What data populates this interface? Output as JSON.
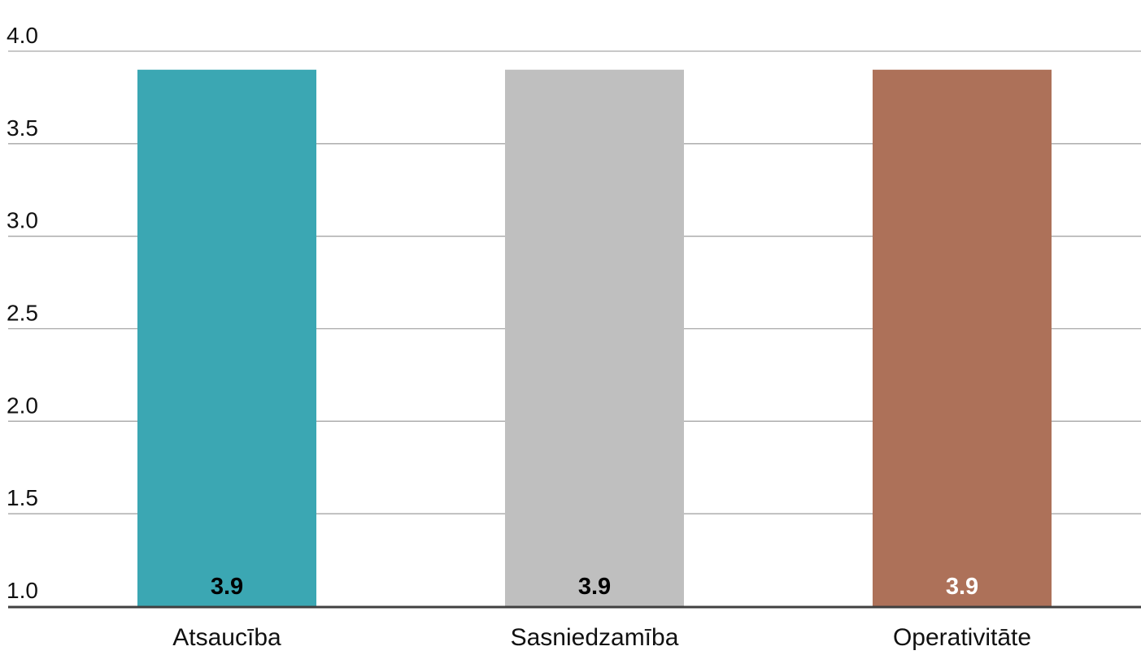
{
  "chart_data": {
    "type": "bar",
    "title": "",
    "xlabel": "",
    "ylabel": "",
    "categories": [
      "Atsaucība",
      "Sasniedzamība",
      "Operativitāte"
    ],
    "values": [
      3.9,
      3.9,
      3.9
    ],
    "value_labels": [
      "3.9",
      "3.9",
      "3.9"
    ],
    "colors": [
      "#3ba7b3",
      "#bfbfbf",
      "#ad7159"
    ],
    "value_label_colors": [
      "#000000",
      "#000000",
      "#ffffff"
    ],
    "ylim": [
      1.0,
      4.0
    ],
    "yticks": [
      1.0,
      1.5,
      2.0,
      2.5,
      3.0,
      3.5,
      4.0
    ],
    "ytick_labels": [
      "1.0",
      "1.5",
      "2.0",
      "2.5",
      "3.0",
      "3.5",
      "4.0"
    ],
    "grid": true,
    "legend": "none"
  }
}
